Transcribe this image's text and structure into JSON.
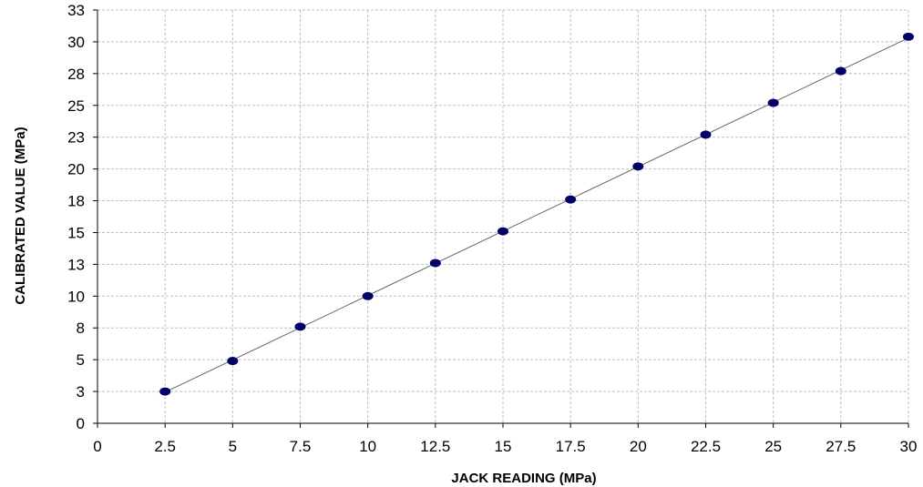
{
  "chart_data": {
    "type": "scatter",
    "title": "",
    "xlabel": "JACK READING (MPa)",
    "ylabel": "CALIBRATED VALUE  (MPa)",
    "xlim": [
      0,
      30
    ],
    "ylim": [
      0,
      32.5
    ],
    "x_ticks": [
      0,
      2.5,
      5,
      7.5,
      10,
      12.5,
      15,
      17.5,
      20,
      22.5,
      25,
      27.5,
      30
    ],
    "x_tick_labels": [
      "0",
      "2.5",
      "5",
      "7.5",
      "10",
      "12.5",
      "15",
      "17.5",
      "20",
      "22.5",
      "25",
      "27.5",
      "30"
    ],
    "y_ticks": [
      0,
      2.5,
      5,
      7.5,
      10,
      12.5,
      15,
      17.5,
      20,
      22.5,
      25,
      27.5,
      30,
      32.5
    ],
    "y_tick_labels": [
      "0",
      "3",
      "5",
      "8",
      "10",
      "13",
      "15",
      "18",
      "20",
      "23",
      "25",
      "28",
      "30",
      "33"
    ],
    "grid": true,
    "trendline": true,
    "series": [
      {
        "x": [
          2.5,
          5,
          7.5,
          10,
          12.5,
          15,
          17.5,
          20,
          22.5,
          25,
          27.5,
          30
        ],
        "y": [
          2.5,
          4.9,
          7.6,
          10.0,
          12.6,
          15.1,
          17.6,
          20.2,
          22.7,
          25.2,
          27.7,
          30.4
        ],
        "marker_color": "#000066",
        "line_color": "#666666"
      }
    ]
  }
}
